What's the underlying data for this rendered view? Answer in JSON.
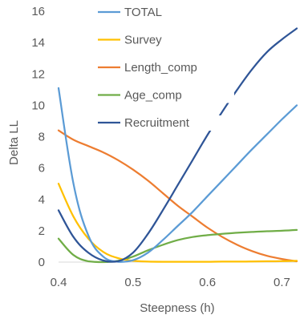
{
  "chart_data": {
    "type": "line",
    "title": "",
    "xlabel": "Steepness (h)",
    "ylabel": "Delta LL",
    "xlim": [
      0.4,
      0.72
    ],
    "ylim": [
      0,
      16
    ],
    "x_ticks": [
      0.4,
      0.5,
      0.6,
      0.7
    ],
    "x_tick_labels": [
      "0.4",
      "0.5",
      "0.6",
      "0.7"
    ],
    "y_ticks": [
      0,
      2,
      4,
      6,
      8,
      10,
      12,
      14,
      16
    ],
    "y_tick_labels": [
      "0",
      "2",
      "4",
      "6",
      "8",
      "10",
      "12",
      "14",
      "16"
    ],
    "grid": false,
    "legend_position": "inside-top",
    "x": [
      0.4,
      0.42,
      0.44,
      0.46,
      0.48,
      0.5,
      0.52,
      0.54,
      0.56,
      0.58,
      0.6,
      0.62,
      0.64,
      0.66,
      0.68,
      0.7,
      0.72
    ],
    "series": [
      {
        "name": "TOTAL",
        "color": "#5B9BD5",
        "values": [
          11.1,
          5.0,
          1.7,
          0.35,
          0.02,
          0.12,
          0.6,
          1.4,
          2.3,
          3.2,
          4.2,
          5.2,
          6.2,
          7.2,
          8.15,
          9.1,
          10.0
        ]
      },
      {
        "name": "Survey",
        "color": "#FFC000",
        "values": [
          5.0,
          2.9,
          1.5,
          0.65,
          0.25,
          0.08,
          0.03,
          0.02,
          0.02,
          0.02,
          0.02,
          0.03,
          0.03,
          0.04,
          0.05,
          0.06,
          0.08
        ]
      },
      {
        "name": "Length_comp",
        "color": "#ED7D31",
        "values": [
          8.4,
          7.8,
          7.4,
          7.0,
          6.5,
          5.9,
          5.2,
          4.4,
          3.6,
          2.9,
          2.2,
          1.6,
          1.1,
          0.7,
          0.4,
          0.2,
          0.05
        ]
      },
      {
        "name": "Age_comp",
        "color": "#70AD47",
        "values": [
          1.5,
          0.45,
          0.05,
          0.0,
          0.08,
          0.35,
          0.75,
          1.1,
          1.4,
          1.6,
          1.72,
          1.8,
          1.87,
          1.92,
          1.97,
          2.0,
          2.05
        ]
      },
      {
        "name": "Recruitment",
        "color": "#2F5597",
        "values": [
          3.3,
          1.6,
          0.6,
          0.1,
          0.05,
          0.6,
          1.8,
          3.3,
          4.9,
          6.5,
          8.1,
          9.6,
          11.0,
          12.3,
          13.4,
          14.2,
          14.9
        ]
      }
    ]
  }
}
